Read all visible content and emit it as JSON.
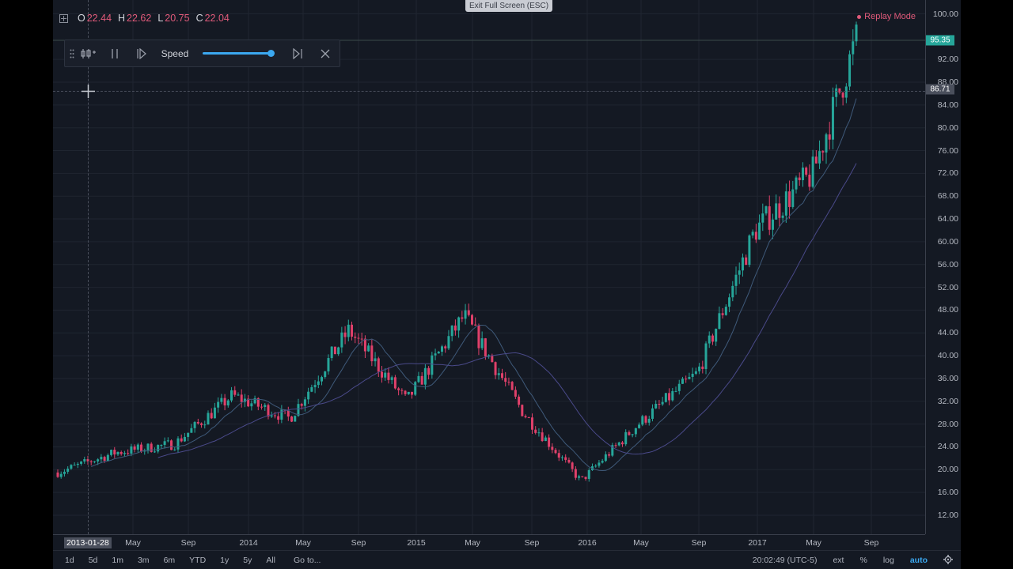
{
  "window": {
    "exit_fullscreen": "Exit Full Screen (ESC)"
  },
  "legend": {
    "open_label": "O",
    "open_value": "22.44",
    "high_label": "H",
    "high_value": "22.62",
    "low_label": "L",
    "low_value": "20.75",
    "close_label": "C",
    "close_value": "22.04"
  },
  "replay": {
    "mode_label": "Replay Mode",
    "speed_label": "Speed",
    "speed_level": 1.0,
    "icons": [
      "drag-handle-icon",
      "select-bar-icon",
      "pause-icon",
      "step-forward-icon",
      "jump-to-end-icon",
      "close-icon"
    ]
  },
  "price_axis": {
    "ticks": [
      "100.00",
      "92.00",
      "88.00",
      "84.00",
      "80.00",
      "76.00",
      "72.00",
      "68.00",
      "64.00",
      "60.00",
      "56.00",
      "52.00",
      "48.00",
      "44.00",
      "40.00",
      "36.00",
      "32.00",
      "28.00",
      "24.00",
      "20.00",
      "16.00",
      "12.00"
    ],
    "current_price": "95.35",
    "crosshair_price": "86.71"
  },
  "time_axis": {
    "crosshair_date": "2013-01-28",
    "ticks": [
      "May",
      "Sep",
      "2014",
      "May",
      "Sep",
      "2015",
      "May",
      "Sep",
      "2016",
      "May",
      "Sep",
      "2017",
      "May",
      "Sep"
    ]
  },
  "bottom_bar": {
    "ranges": [
      "1d",
      "5d",
      "1m",
      "3m",
      "6m",
      "YTD",
      "1y",
      "5y",
      "All"
    ],
    "goto": "Go to...",
    "clock": "20:02:49 (UTC-5)",
    "ext": "ext",
    "percent": "%",
    "log": "log",
    "auto": "auto"
  },
  "colors": {
    "up": "#26a69a",
    "down": "#e0406a",
    "background": "#141923",
    "accent": "#3ba8f0"
  },
  "chart_data": {
    "type": "candlestick",
    "y_range": [
      10,
      101
    ],
    "x_range": [
      "2013-01",
      "2017-09"
    ],
    "series": [
      {
        "x": [
          2013.0,
          2013.33,
          2013.67,
          2014.0,
          2014.33,
          2014.67,
          2015.0,
          2015.33,
          2015.67,
          2016.0,
          2016.33,
          2016.67,
          2017.0,
          2017.33,
          2017.58
        ],
        "close": [
          19.5,
          23.0,
          24.5,
          33.0,
          29.0,
          44.5,
          32.0,
          47.0,
          30.0,
          18.0,
          28.0,
          37.0,
          62.0,
          72.0,
          95.35
        ]
      }
    ]
  }
}
